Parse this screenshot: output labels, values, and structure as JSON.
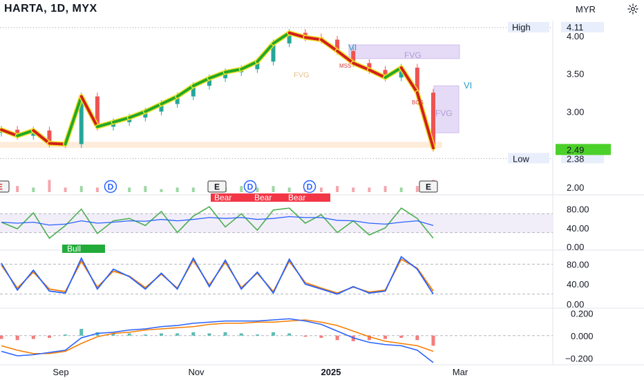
{
  "header": {
    "title": "HARTA, 1D, MYX",
    "currency": "MYR",
    "settings_icon": "gear-icon"
  },
  "colors": {
    "bull_line": "#22a82a",
    "bear_line": "#d11f1f",
    "accent_yellow": "#f1e227",
    "rsi_line": "#4caf50",
    "rsi_ma": "#2962ff",
    "stoch_k": "#2962ff",
    "stoch_d": "#f57c00",
    "macd_line": "#2962ff",
    "signal_line": "#f57c00",
    "fvg_fill": "#e1d5f5",
    "fvg_stroke": "#c9b2ec",
    "low_zone": "#fde4cc",
    "badge_bear": "#f23645",
    "badge_bull": "#22ab3b",
    "last_price_bg": "#4cd02a"
  },
  "chart_data": [
    {
      "type": "line",
      "name": "price",
      "title": "HARTA, 1D, MYX",
      "currency": "MYR",
      "yticks": [
        "4.00",
        "3.50",
        "3.00",
        "2.00"
      ],
      "ytick_values": [
        4.0,
        3.5,
        3.0,
        2.0
      ],
      "ylim": [
        1.9,
        4.2
      ],
      "xticks": [
        "Sep",
        "Nov",
        "2025",
        "Mar"
      ],
      "x": [
        "Aug-15",
        "Aug-22",
        "Aug-29",
        "Sep-05",
        "Sep-12",
        "Sep-19",
        "Sep-26",
        "Oct-03",
        "Oct-10",
        "Oct-17",
        "Oct-24",
        "Oct-31",
        "Nov-07",
        "Nov-14",
        "Nov-21",
        "Nov-28",
        "Dec-05",
        "Dec-12",
        "Dec-19",
        "Dec-26",
        "Jan-02",
        "Jan-09",
        "Jan-16",
        "Jan-23",
        "Jan-30",
        "Feb-06",
        "Feb-13",
        "Feb-20"
      ],
      "close": [
        2.76,
        2.68,
        2.75,
        2.58,
        2.57,
        3.2,
        2.8,
        2.86,
        2.92,
        3.0,
        3.1,
        3.2,
        3.34,
        3.44,
        3.52,
        3.56,
        3.66,
        3.9,
        4.04,
        3.98,
        3.95,
        3.8,
        3.64,
        3.55,
        3.45,
        3.58,
        3.25,
        2.52
      ],
      "high_label": "High",
      "high_value": "4.11",
      "low_label": "Low",
      "low_value": "2.38",
      "last_price": "2.49",
      "annotations": [
        "FVG",
        "FVG",
        "FVG",
        "MSS",
        "BOS",
        "VI",
        "VI"
      ],
      "markers": [
        "E",
        "D",
        "E",
        "D",
        "D",
        "E"
      ],
      "volume": [
        3,
        4,
        3,
        8,
        3,
        4,
        3,
        3,
        3,
        4,
        2,
        3,
        3,
        4,
        3,
        4,
        3,
        4,
        3,
        3,
        3,
        4,
        3,
        3,
        4,
        3,
        4,
        8
      ]
    },
    {
      "type": "line",
      "name": "rsi",
      "yticks": [
        "80.00",
        "40.00",
        "0.00"
      ],
      "ylim": [
        0,
        100
      ],
      "bands": [
        30,
        70
      ],
      "values": [
        52,
        38,
        72,
        18,
        45,
        80,
        28,
        55,
        60,
        45,
        75,
        30,
        65,
        85,
        42,
        70,
        35,
        78,
        82,
        50,
        68,
        30,
        55,
        25,
        40,
        82,
        60,
        18
      ],
      "ma_values": [
        52,
        50,
        52,
        46,
        48,
        55,
        50,
        52,
        55,
        54,
        58,
        55,
        58,
        62,
        60,
        62,
        58,
        60,
        64,
        62,
        62,
        56,
        55,
        50,
        48,
        52,
        55,
        45
      ],
      "badges": [
        "Bull",
        "Bear",
        "Bear",
        "Bear"
      ]
    },
    {
      "type": "line",
      "name": "stochastic",
      "yticks": [
        "80.00",
        "40.00",
        "0.00"
      ],
      "ylim": [
        0,
        100
      ],
      "k_values": [
        82,
        28,
        68,
        26,
        22,
        92,
        30,
        70,
        55,
        30,
        62,
        30,
        92,
        35,
        88,
        30,
        64,
        22,
        90,
        40,
        30,
        20,
        35,
        22,
        26,
        95,
        70,
        20
      ],
      "d_values": [
        78,
        32,
        64,
        30,
        25,
        86,
        34,
        66,
        56,
        33,
        60,
        32,
        88,
        38,
        84,
        33,
        62,
        25,
        86,
        43,
        32,
        22,
        34,
        24,
        28,
        90,
        72,
        26
      ]
    },
    {
      "type": "bar",
      "name": "macd",
      "yticks": [
        "0.200",
        "0.000",
        "-0.200"
      ],
      "ylim": [
        -0.26,
        0.22
      ],
      "hist": [
        -0.03,
        -0.04,
        -0.03,
        -0.02,
        0.01,
        0.06,
        0.03,
        0.02,
        0.02,
        0.01,
        0.02,
        0.02,
        0.03,
        0.02,
        0.03,
        0.02,
        0.01,
        0.03,
        0.02,
        -0.01,
        -0.02,
        -0.04,
        -0.05,
        -0.04,
        -0.03,
        -0.02,
        -0.04,
        -0.09
      ],
      "macd_values": [
        -0.14,
        -0.18,
        -0.17,
        -0.15,
        -0.13,
        -0.02,
        0.02,
        0.03,
        0.05,
        0.06,
        0.08,
        0.09,
        0.11,
        0.12,
        0.13,
        0.13,
        0.13,
        0.14,
        0.15,
        0.13,
        0.1,
        0.04,
        -0.02,
        -0.06,
        -0.08,
        -0.09,
        -0.13,
        -0.24
      ],
      "signal_values": [
        -0.09,
        -0.13,
        -0.16,
        -0.16,
        -0.14,
        -0.07,
        -0.01,
        0.02,
        0.03,
        0.05,
        0.06,
        0.07,
        0.08,
        0.1,
        0.11,
        0.11,
        0.12,
        0.12,
        0.13,
        0.14,
        0.12,
        0.09,
        0.04,
        -0.01,
        -0.05,
        -0.07,
        -0.09,
        -0.14
      ]
    }
  ]
}
